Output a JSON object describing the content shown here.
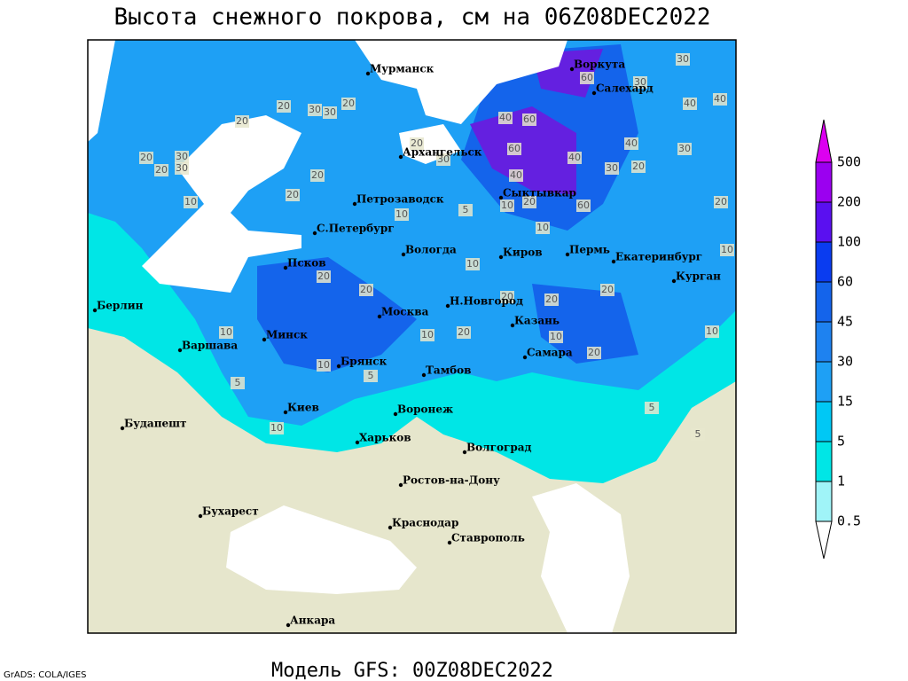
{
  "title": "Высота снежного покрова, см на 06Z08DEC2022",
  "subtitle": "Модель GFS: 00Z08DEC2022",
  "credit": "GrADS: COLA/IGES",
  "cities": [
    "Мурманск",
    "Воркута",
    "Салехард",
    "Архангельск",
    "Сыктывкар",
    "Петрозаводск",
    "С.Петербург",
    "Вологда",
    "Киров",
    "Пермь",
    "Екатеринбург",
    "Курган",
    "Псков",
    "Н.Новгород",
    "Казань",
    "Берлин",
    "Москва",
    "Минск",
    "Варшава",
    "Брянск",
    "Тамбов",
    "Самара",
    "Киев",
    "Воронеж",
    "Будапешт",
    "Харьков",
    "Волгоград",
    "Ростов-на-Дону",
    "Бухарест",
    "Краснодар",
    "Ставрополь",
    "Анкара"
  ],
  "contour_labels": [
    20,
    30,
    30,
    20,
    20,
    20,
    20,
    30,
    30,
    10,
    20,
    20,
    10,
    5,
    20,
    30,
    40,
    60,
    60,
    40,
    40,
    30,
    20,
    40,
    30,
    40,
    40,
    30,
    30,
    60,
    20,
    10,
    10,
    60,
    10,
    20,
    20,
    20,
    20,
    10,
    20,
    20,
    10,
    20,
    10,
    20,
    10,
    10,
    10,
    5,
    5,
    10,
    5,
    5
  ],
  "legend": {
    "levels": [
      0.5,
      1,
      5,
      15,
      30,
      45,
      60,
      100,
      200,
      500
    ],
    "colors": [
      "#ffffff",
      "#a0f4f8",
      "#00e6e6",
      "#00c8f5",
      "#1ea0f5",
      "#1e82f0",
      "#1464eb",
      "#0a3cf0",
      "#5a10f0",
      "#9b00f0",
      "#dc00f0"
    ]
  }
}
